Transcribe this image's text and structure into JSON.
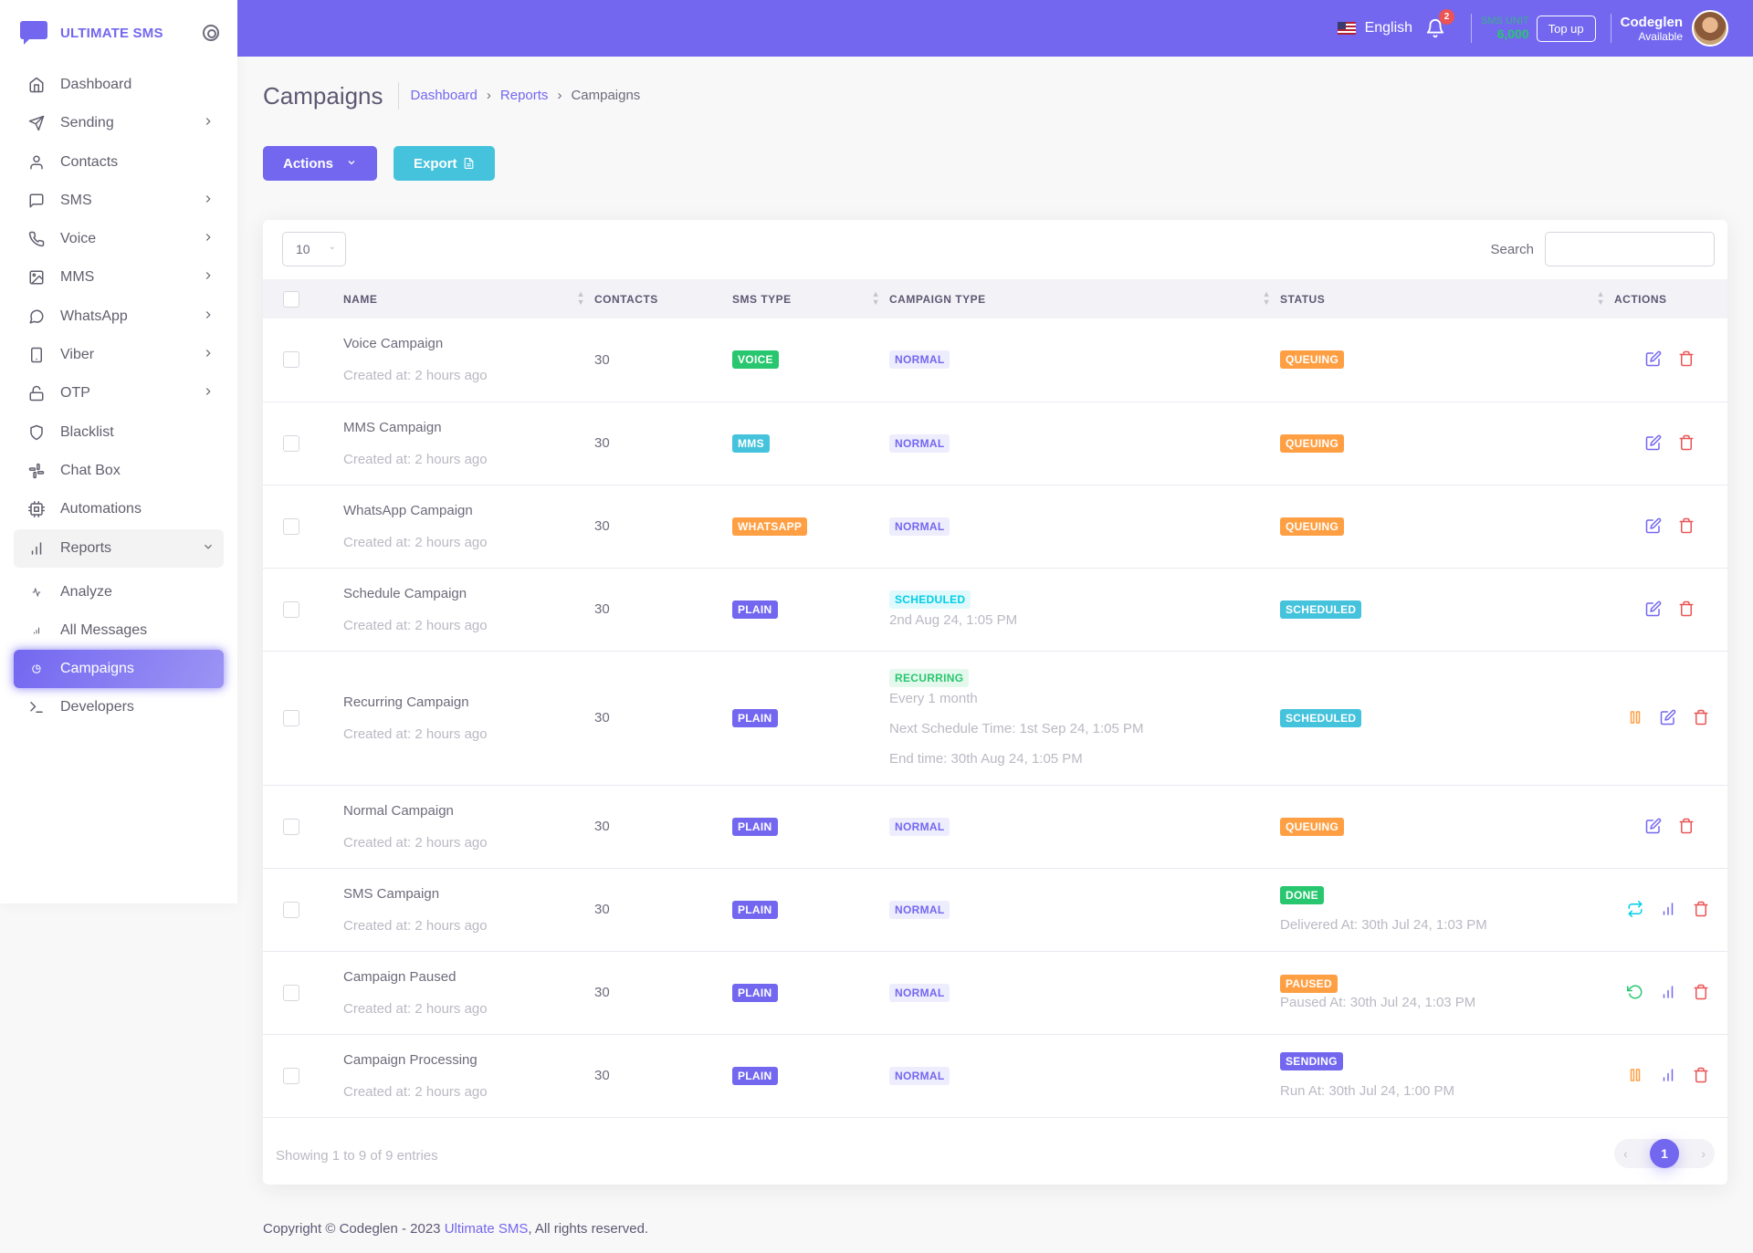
{
  "brand": {
    "name": "ULTIMATE SMS"
  },
  "sidebar": {
    "items": [
      {
        "label": "Dashboard",
        "icon": "home-icon",
        "chevron": false
      },
      {
        "label": "Sending",
        "icon": "send-icon",
        "chevron": true
      },
      {
        "label": "Contacts",
        "icon": "user-icon",
        "chevron": false
      },
      {
        "label": "SMS",
        "icon": "message-square-icon",
        "chevron": true
      },
      {
        "label": "Voice",
        "icon": "phone-icon",
        "chevron": true
      },
      {
        "label": "MMS",
        "icon": "image-icon",
        "chevron": true
      },
      {
        "label": "WhatsApp",
        "icon": "message-circle-icon",
        "chevron": true
      },
      {
        "label": "Viber",
        "icon": "tablet-icon",
        "chevron": true
      },
      {
        "label": "OTP",
        "icon": "unlock-icon",
        "chevron": true
      },
      {
        "label": "Blacklist",
        "icon": "shield-icon",
        "chevron": false
      },
      {
        "label": "Chat Box",
        "icon": "slack-icon",
        "chevron": false
      },
      {
        "label": "Automations",
        "icon": "cpu-icon",
        "chevron": false
      },
      {
        "label": "Reports",
        "icon": "bar-chart-icon",
        "chevron": "down"
      },
      {
        "label": "Analyze",
        "icon": "activity-icon",
        "chevron": false,
        "sub": true
      },
      {
        "label": "All Messages",
        "icon": "bar-chart-small-icon",
        "chevron": false,
        "sub": true
      },
      {
        "label": "Campaigns",
        "icon": "pie-chart-icon",
        "chevron": false,
        "sub": true,
        "active": true
      },
      {
        "label": "Developers",
        "icon": "terminal-icon",
        "chevron": false
      }
    ]
  },
  "navbar": {
    "language": "English",
    "notification_count": "2",
    "sms_unit_label": "SMS UNIT",
    "sms_unit_value": "6,000",
    "topup_label": "Top up",
    "user_name": "Codeglen",
    "user_status": "Available"
  },
  "page": {
    "title": "Campaigns",
    "breadcrumb": [
      "Dashboard",
      "Reports",
      "Campaigns"
    ],
    "actions_label": "Actions",
    "export_label": "Export"
  },
  "table": {
    "page_length": "10",
    "search_label": "Search",
    "search_value": "",
    "columns": [
      "Name",
      "Contacts",
      "SMS Type",
      "Campaign Type",
      "Status",
      "Actions"
    ],
    "rows": [
      {
        "name": "Voice Campaign",
        "created": "Created at: 2 hours ago",
        "contacts": "30",
        "sms_type": "VOICE",
        "campaign_type": "NORMAL",
        "campaign_lines": [],
        "status": "QUEUING",
        "status_line": "",
        "actions": [
          "edit",
          "delete"
        ]
      },
      {
        "name": "MMS Campaign",
        "created": "Created at: 2 hours ago",
        "contacts": "30",
        "sms_type": "MMS",
        "campaign_type": "NORMAL",
        "campaign_lines": [],
        "status": "QUEUING",
        "status_line": "",
        "actions": [
          "edit",
          "delete"
        ]
      },
      {
        "name": "WhatsApp Campaign",
        "created": "Created at: 2 hours ago",
        "contacts": "30",
        "sms_type": "WHATSAPP",
        "campaign_type": "NORMAL",
        "campaign_lines": [],
        "status": "QUEUING",
        "status_line": "",
        "actions": [
          "edit",
          "delete"
        ]
      },
      {
        "name": "Schedule Campaign",
        "created": "Created at: 2 hours ago",
        "contacts": "30",
        "sms_type": "PLAIN",
        "campaign_type": "SCHEDULED",
        "campaign_lines": [
          "2nd Aug 24, 1:05 PM"
        ],
        "status": "SCHEDULED",
        "status_line": "",
        "actions": [
          "edit",
          "delete"
        ]
      },
      {
        "name": "Recurring Campaign",
        "created": "Created at: 2 hours ago",
        "contacts": "30",
        "sms_type": "PLAIN",
        "campaign_type": "RECURRING",
        "campaign_lines": [
          "Every 1 month",
          "Next Schedule Time: 1st Sep 24, 1:05 PM",
          "End time: 30th Aug 24, 1:05 PM"
        ],
        "status": "SCHEDULED",
        "status_line": "",
        "actions": [
          "pause",
          "edit",
          "delete"
        ]
      },
      {
        "name": "Normal Campaign",
        "created": "Created at: 2 hours ago",
        "contacts": "30",
        "sms_type": "PLAIN",
        "campaign_type": "NORMAL",
        "campaign_lines": [],
        "status": "QUEUING",
        "status_line": "",
        "actions": [
          "edit",
          "delete"
        ]
      },
      {
        "name": "SMS Campaign",
        "created": "Created at: 2 hours ago",
        "contacts": "30",
        "sms_type": "PLAIN",
        "campaign_type": "NORMAL",
        "campaign_lines": [],
        "status": "DONE",
        "status_line": "Delivered At: 30th Jul 24, 1:03 PM",
        "actions": [
          "repeat",
          "report",
          "delete"
        ]
      },
      {
        "name": "Campaign Paused",
        "created": "Created at: 2 hours ago",
        "contacts": "30",
        "sms_type": "PLAIN",
        "campaign_type": "NORMAL",
        "campaign_lines": [],
        "status": "PAUSED",
        "status_line": "Paused At: 30th Jul 24, 1:03 PM",
        "actions": [
          "resume",
          "report",
          "delete"
        ]
      },
      {
        "name": "Campaign Processing",
        "created": "Created at: 2 hours ago",
        "contacts": "30",
        "sms_type": "PLAIN",
        "campaign_type": "NORMAL",
        "campaign_lines": [],
        "status": "SENDING",
        "status_line": "Run At: 30th Jul 24, 1:00 PM",
        "actions": [
          "pause",
          "report",
          "delete"
        ]
      }
    ],
    "info": "Showing 1 to 9 of 9 entries",
    "current_page": "1"
  },
  "footer": {
    "copyright": "Copyright © Codeglen - 2023",
    "link": "Ultimate SMS",
    "rights": ", All rights reserved."
  },
  "colors": {
    "primary": "#7367f0",
    "success": "#28c76f",
    "info": "#45c3dc",
    "warning": "#ff9f43",
    "danger": "#ea5455"
  }
}
